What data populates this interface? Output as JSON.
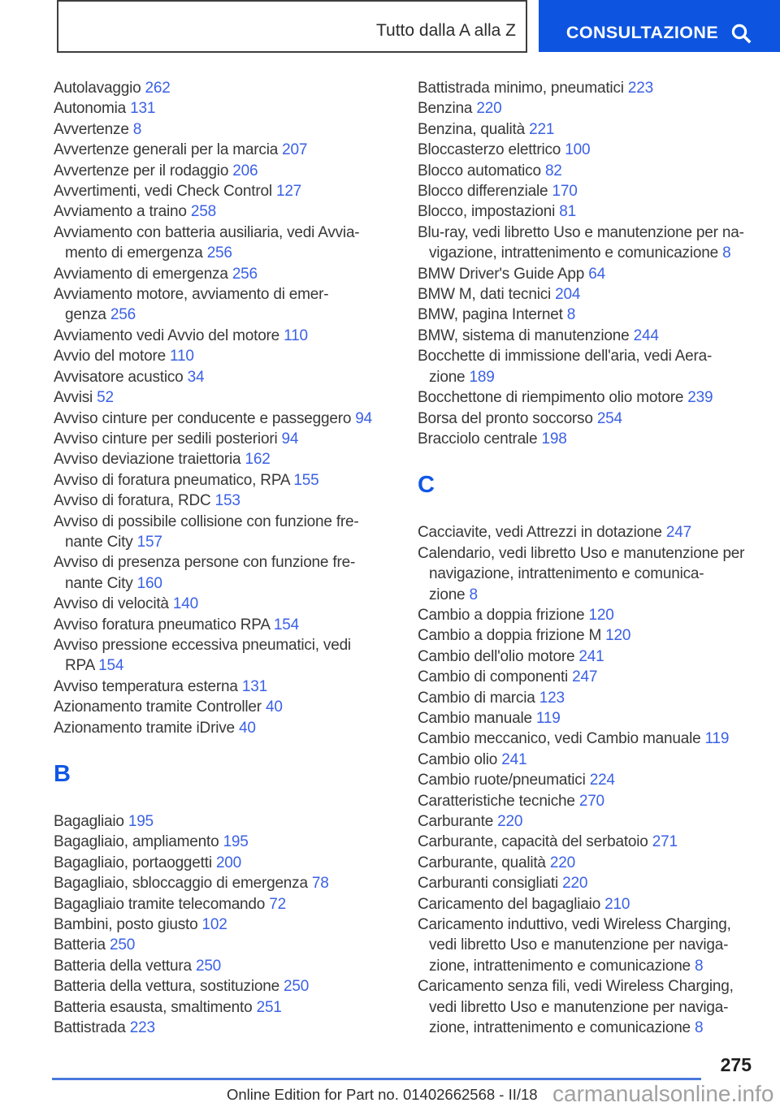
{
  "colors": {
    "accent": "#0d55e0",
    "link": "#3b61e6",
    "heading": "#1157e6",
    "rule": "#4a79de"
  },
  "header": {
    "tab_label": "Tutto dalla A alla Z",
    "search_button_label": "CONSULTAZIONE",
    "search_icon": "magnifier-icon"
  },
  "index": {
    "left_column": [
      {
        "type": "entries",
        "items": [
          {
            "text": "Autolavaggio",
            "page": "262"
          },
          {
            "text": "Autonomia",
            "page": "131"
          },
          {
            "text": "Avvertenze",
            "page": "8"
          },
          {
            "text": "Avvertenze generali per la marcia",
            "page": "207"
          },
          {
            "text": "Avvertenze per il rodaggio",
            "page": "206"
          },
          {
            "text": "Avvertimenti, vedi Check Control",
            "page": "127"
          },
          {
            "text": "Avviamento a traino",
            "page": "258"
          },
          {
            "text": "Avviamento con batteria ausiliaria, vedi Avvia-\nmento di emergenza",
            "page": "256"
          },
          {
            "text": "Avviamento di emergenza",
            "page": "256"
          },
          {
            "text": "Avviamento motore, avviamento di emer-\ngenza",
            "page": "256"
          },
          {
            "text": "Avviamento vedi Avvio del motore",
            "page": "110"
          },
          {
            "text": "Avvio del motore",
            "page": "110"
          },
          {
            "text": "Avvisatore acustico",
            "page": "34"
          },
          {
            "text": "Avvisi",
            "page": "52"
          },
          {
            "text": "Avviso cinture per conducente e passeggero",
            "page": "94"
          },
          {
            "text": "Avviso cinture per sedili posteriori",
            "page": "94"
          },
          {
            "text": "Avviso deviazione traiettoria",
            "page": "162"
          },
          {
            "text": "Avviso di foratura pneumatico, RPA",
            "page": "155"
          },
          {
            "text": "Avviso di foratura, RDC",
            "page": "153"
          },
          {
            "text": "Avviso di possibile collisione con funzione fre-\nnante City",
            "page": "157"
          },
          {
            "text": "Avviso di presenza persone con funzione fre-\nnante City",
            "page": "160"
          },
          {
            "text": "Avviso di velocità",
            "page": "140"
          },
          {
            "text": "Avviso foratura pneumatico RPA",
            "page": "154"
          },
          {
            "text": "Avviso pressione eccessiva pneumatici, vedi\nRPA",
            "page": "154"
          },
          {
            "text": "Avviso temperatura esterna",
            "page": "131"
          },
          {
            "text": "Azionamento tramite Controller",
            "page": "40"
          },
          {
            "text": "Azionamento tramite iDrive",
            "page": "40"
          }
        ]
      },
      {
        "type": "heading",
        "text": "B"
      },
      {
        "type": "entries",
        "items": [
          {
            "text": "Bagagliaio",
            "page": "195"
          },
          {
            "text": "Bagagliaio, ampliamento",
            "page": "195"
          },
          {
            "text": "Bagagliaio, portaoggetti",
            "page": "200"
          },
          {
            "text": "Bagagliaio, sbloccaggio di emergenza",
            "page": "78"
          },
          {
            "text": "Bagagliaio tramite telecomando",
            "page": "72"
          },
          {
            "text": "Bambini, posto giusto",
            "page": "102"
          },
          {
            "text": "Batteria",
            "page": "250"
          },
          {
            "text": "Batteria della vettura",
            "page": "250"
          },
          {
            "text": "Batteria della vettura, sostituzione",
            "page": "250"
          },
          {
            "text": "Batteria esausta, smaltimento",
            "page": "251"
          },
          {
            "text": "Battistrada",
            "page": "223"
          }
        ]
      }
    ],
    "right_column": [
      {
        "type": "entries",
        "items": [
          {
            "text": "Battistrada minimo, pneumatici",
            "page": "223"
          },
          {
            "text": "Benzina",
            "page": "220"
          },
          {
            "text": "Benzina, qualità",
            "page": "221"
          },
          {
            "text": "Bloccasterzo elettrico",
            "page": "100"
          },
          {
            "text": "Blocco automatico",
            "page": "82"
          },
          {
            "text": "Blocco differenziale",
            "page": "170"
          },
          {
            "text": "Blocco, impostazioni",
            "page": "81"
          },
          {
            "text": "Blu-ray, vedi libretto Uso e manutenzione per na-\nvigazione, intrattenimento e comunicazione",
            "page": "8"
          },
          {
            "text": "BMW Driver's Guide App",
            "page": "64"
          },
          {
            "text": "BMW M, dati tecnici",
            "page": "204"
          },
          {
            "text": "BMW, pagina Internet",
            "page": "8"
          },
          {
            "text": "BMW, sistema di manutenzione",
            "page": "244"
          },
          {
            "text": "Bocchette di immissione dell'aria, vedi Aera-\nzione",
            "page": "189"
          },
          {
            "text": "Bocchettone di riempimento olio motore",
            "page": "239"
          },
          {
            "text": "Borsa del pronto soccorso",
            "page": "254"
          },
          {
            "text": "Bracciolo centrale",
            "page": "198"
          }
        ]
      },
      {
        "type": "heading",
        "text": "C"
      },
      {
        "type": "entries",
        "items": [
          {
            "text": "Cacciavite, vedi Attrezzi in dotazione",
            "page": "247"
          },
          {
            "text": "Calendario, vedi libretto Uso e manutenzione per\nnavigazione, intrattenimento e comunica-\nzione",
            "page": "8"
          },
          {
            "text": "Cambio a doppia frizione",
            "page": "120"
          },
          {
            "text": "Cambio a doppia frizione M",
            "page": "120"
          },
          {
            "text": "Cambio dell'olio motore",
            "page": "241"
          },
          {
            "text": "Cambio di componenti",
            "page": "247"
          },
          {
            "text": "Cambio di marcia",
            "page": "123"
          },
          {
            "text": "Cambio manuale",
            "page": "119"
          },
          {
            "text": "Cambio meccanico, vedi Cambio manuale",
            "page": "119"
          },
          {
            "text": "Cambio olio",
            "page": "241"
          },
          {
            "text": "Cambio ruote/pneumatici",
            "page": "224"
          },
          {
            "text": "Caratteristiche tecniche",
            "page": "270"
          },
          {
            "text": "Carburante",
            "page": "220"
          },
          {
            "text": "Carburante, capacità del serbatoio",
            "page": "271"
          },
          {
            "text": "Carburante, qualità",
            "page": "220"
          },
          {
            "text": "Carburanti consigliati",
            "page": "220"
          },
          {
            "text": "Caricamento del bagagliaio",
            "page": "210"
          },
          {
            "text": "Caricamento induttivo, vedi Wireless Charging,\nvedi libretto Uso e manutenzione per naviga-\nzione, intrattenimento e comunicazione",
            "page": "8"
          },
          {
            "text": "Caricamento senza fili, vedi Wireless Charging,\nvedi libretto Uso e manutenzione per naviga-\nzione, intrattenimento e comunicazione",
            "page": "8"
          }
        ]
      }
    ]
  },
  "footer": {
    "page_number": "275",
    "edition_text": "Online Edition for Part no. 01402662568 - II/18",
    "watermark": "carmanualsonline.info"
  }
}
